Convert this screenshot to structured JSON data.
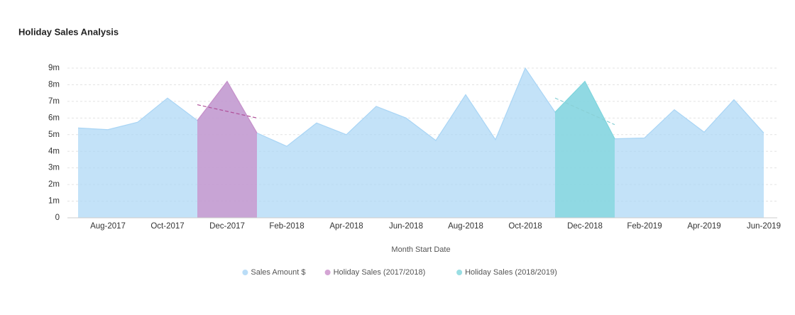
{
  "chart_data": {
    "type": "area",
    "title": "Holiday Sales Analysis",
    "x_label": "Month Start Date",
    "categories": [
      null,
      "Aug-2017",
      null,
      "Oct-2017",
      null,
      "Dec-2017",
      null,
      "Feb-2018",
      null,
      "Apr-2018",
      null,
      "Jun-2018",
      null,
      "Aug-2018",
      null,
      "Oct-2018",
      null,
      "Dec-2018",
      null,
      "Feb-2019",
      null,
      "Apr-2019",
      null,
      "Jun-2019"
    ],
    "series": [
      {
        "name": "Sales Amount $",
        "color": "#a9d5f5",
        "values": [
          5400000,
          5300000,
          5750000,
          7200000,
          5850000,
          8200000,
          5100000,
          4300000,
          5700000,
          5000000,
          6700000,
          6000000,
          4650000,
          7400000,
          4700000,
          9000000,
          6350000,
          8200000,
          4750000,
          4800000,
          6500000,
          5150000,
          7100000,
          5100000
        ]
      },
      {
        "name": "Holiday Sales (2017/2018)",
        "color": "#c98fc9",
        "values": [
          null,
          null,
          null,
          null,
          5850000,
          8200000,
          5100000,
          null,
          null,
          null,
          null,
          null,
          null,
          null,
          null,
          null,
          null,
          null,
          null,
          null,
          null,
          null,
          null,
          null
        ],
        "trend": [
          6800000,
          6000000
        ]
      },
      {
        "name": "Holiday Sales (2018/2019)",
        "color": "#7fd6dc",
        "values": [
          null,
          null,
          null,
          null,
          null,
          null,
          null,
          null,
          null,
          null,
          null,
          null,
          null,
          null,
          null,
          null,
          6350000,
          8200000,
          4750000,
          null,
          null,
          null,
          null,
          null
        ],
        "trend": [
          7200000,
          5600000
        ]
      }
    ],
    "ylim": [
      0,
      9000000
    ],
    "yticks": [
      0,
      {
        "value": 1000000,
        "label": "1m"
      },
      {
        "value": 2000000,
        "label": "2m"
      },
      {
        "value": 3000000,
        "label": "3m"
      },
      {
        "value": 4000000,
        "label": "4m"
      },
      {
        "value": 5000000,
        "label": "5m"
      },
      {
        "value": 6000000,
        "label": "6m"
      },
      {
        "value": 7000000,
        "label": "7m"
      },
      {
        "value": 8000000,
        "label": "8m"
      },
      {
        "value": 9000000,
        "label": "9m"
      }
    ],
    "grid": true
  }
}
